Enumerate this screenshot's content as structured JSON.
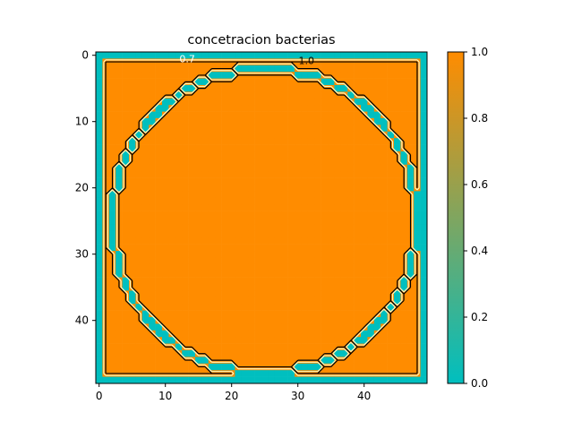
{
  "chart_data": {
    "type": "heatmap",
    "title": "concetracion bacterias",
    "xlabel": "",
    "ylabel": "",
    "grid_size": [
      50,
      50
    ],
    "xlim": [
      -0.5,
      49.5
    ],
    "ylim": [
      49.5,
      -0.5
    ],
    "x_ticks": [
      "0",
      "10",
      "20",
      "30",
      "40"
    ],
    "y_ticks": [
      "0",
      "10",
      "20",
      "30",
      "40"
    ],
    "colormap": {
      "low_color": "#00bfbf",
      "high_color": "#ff8c00",
      "range": [
        0.0,
        1.0
      ]
    },
    "colorbar_ticks": [
      "0.0",
      "0.2",
      "0.4",
      "0.6",
      "0.8",
      "1.0"
    ],
    "field": {
      "description_value_outside_square": 0.0,
      "value_inside_square": 1.0,
      "square_extent": [
        1,
        48
      ],
      "circle_center": [
        25,
        25
      ],
      "circle_radius": 23,
      "value_outside_circle_inside_square": 1.0,
      "value_on_circle": 0.0
    },
    "contour_levels": [
      0.7,
      1.0
    ],
    "contour_labels": [
      {
        "text": "0.7",
        "at": [
          13.3,
          0.5
        ]
      },
      {
        "text": "1.0",
        "at": [
          31.3,
          0.8
        ]
      }
    ]
  }
}
